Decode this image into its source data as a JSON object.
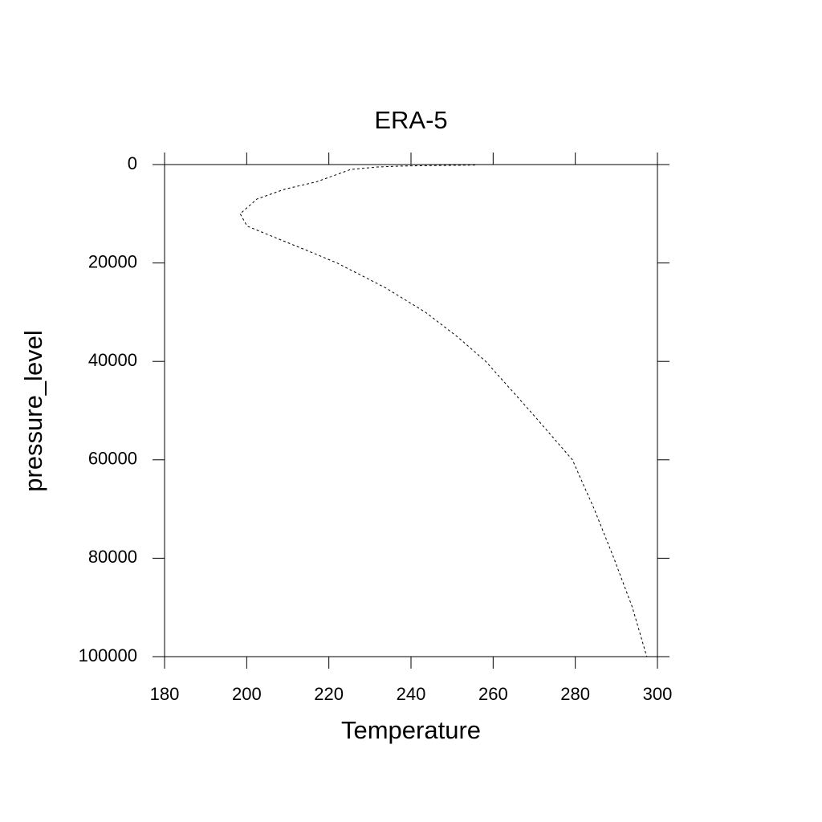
{
  "chart_data": {
    "type": "line",
    "title": "ERA-5",
    "x_label": "Temperature",
    "y_label": "pressure_level",
    "y_inverted": true,
    "xlim": [
      180,
      300
    ],
    "xticks": [
      180,
      200,
      220,
      240,
      260,
      280,
      300
    ],
    "ylim": [
      0,
      100000
    ],
    "yticks": [
      0,
      20000,
      40000,
      60000,
      80000,
      100000
    ],
    "series": [
      {
        "color": "#000000",
        "dashed": true,
        "x": [
          255.6,
          245.5,
          237.7,
          231.8,
          225.3,
          222,
          217,
          209.3,
          202.5,
          198.4,
          200.1,
          207.4,
          214.8,
          222,
          233.7,
          243.5,
          251.3,
          258.2,
          268.9,
          279.3,
          284.6,
          289.4,
          293.9,
          297.4
        ],
        "values": [
          100,
          200,
          300,
          500,
          1000,
          2000,
          3500,
          5000,
          7000,
          10000,
          12500,
          15000,
          17500,
          20000,
          25000,
          30000,
          35000,
          40000,
          50000,
          60000,
          70000,
          80000,
          90000,
          100000
        ]
      }
    ]
  }
}
